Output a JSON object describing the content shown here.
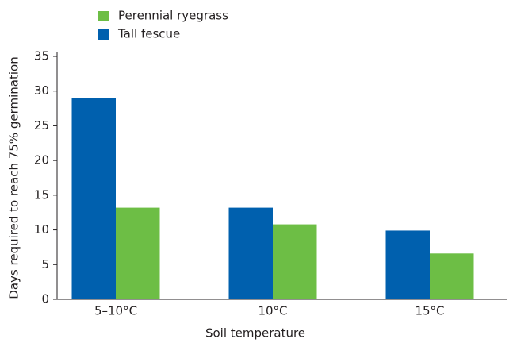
{
  "chart_data": {
    "type": "bar",
    "x_label": "Soil temperature",
    "y_label": "Days required to reach 75% germination",
    "categories": [
      "5–10°C",
      "10°C",
      "15°C"
    ],
    "series": [
      {
        "name": "Tall fescue",
        "color": "#0060ae",
        "values": [
          29,
          13.2,
          9.9
        ]
      },
      {
        "name": "Perennial ryegrass",
        "color": "#6dbe45",
        "values": [
          13.2,
          10.8,
          6.6
        ]
      }
    ],
    "ylim": [
      0,
      35
    ],
    "yticks": [
      0,
      5,
      10,
      15,
      20,
      25,
      30,
      35
    ],
    "grid": false
  }
}
